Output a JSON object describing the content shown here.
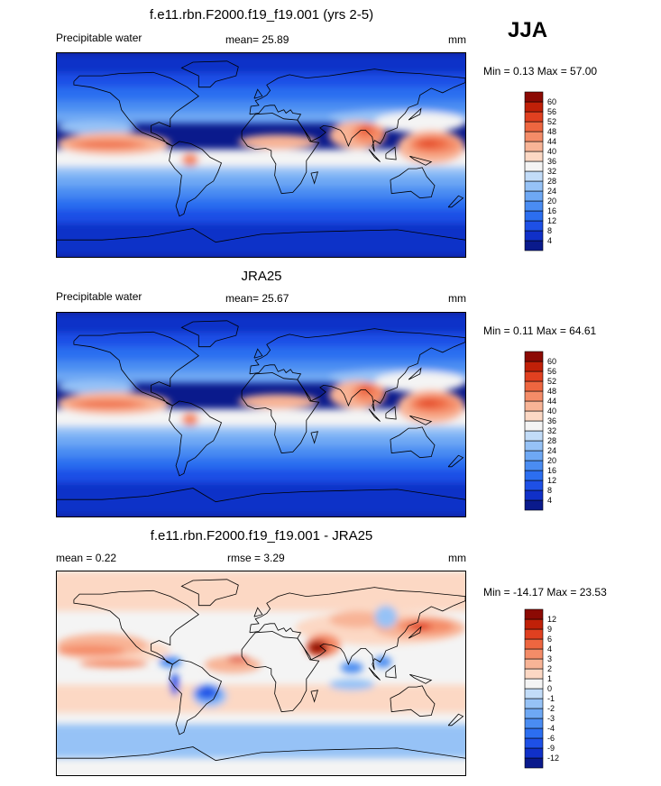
{
  "season": "JJA",
  "panels": [
    {
      "id": "model",
      "title": "f.e11.rbn.F2000.f19_f19.001 (yrs 2-5)",
      "left_label": "Precipitable water",
      "center_label": "mean=  25.89",
      "units": "mm",
      "minmax": "Min =   0.13 Max =  57.00"
    },
    {
      "id": "obs",
      "title": "JRA25",
      "left_label": "Precipitable water",
      "center_label": "mean=  25.67",
      "units": "mm",
      "minmax": "Min =   0.11 Max =  64.61"
    },
    {
      "id": "diff",
      "title": "f.e11.rbn.F2000.f19_f19.001 - JRA25",
      "left_label": "mean =   0.22",
      "center_label": "rmse =   3.29",
      "units": "mm",
      "minmax": "Min = -14.17 Max =  23.53"
    }
  ],
  "chart_data": [
    {
      "type": "heatmap",
      "title": "f.e11.rbn.F2000.f19_f19.001 (yrs 2-5)",
      "variable": "Precipitable water",
      "units": "mm",
      "mean": 25.89,
      "min": 0.13,
      "max": 57.0,
      "colorbar_levels": [
        4,
        8,
        12,
        16,
        20,
        24,
        28,
        32,
        36,
        40,
        44,
        48,
        52,
        56,
        60
      ],
      "colors": [
        "#0a1a8c",
        "#1030c8",
        "#1e50e6",
        "#2c6ef0",
        "#4a8cf2",
        "#6ea8f4",
        "#96c2f6",
        "#c2dcf8",
        "#f4f4f4",
        "#fcd8c4",
        "#f8b496",
        "#f48c68",
        "#ee6640",
        "#e04020",
        "#c02008",
        "#8c0a04"
      ]
    },
    {
      "type": "heatmap",
      "title": "JRA25",
      "variable": "Precipitable water",
      "units": "mm",
      "mean": 25.67,
      "min": 0.11,
      "max": 64.61,
      "colorbar_levels": [
        4,
        8,
        12,
        16,
        20,
        24,
        28,
        32,
        36,
        40,
        44,
        48,
        52,
        56,
        60
      ],
      "colors": [
        "#0a1a8c",
        "#1030c8",
        "#1e50e6",
        "#2c6ef0",
        "#4a8cf2",
        "#6ea8f4",
        "#96c2f6",
        "#c2dcf8",
        "#f4f4f4",
        "#fcd8c4",
        "#f8b496",
        "#f48c68",
        "#ee6640",
        "#e04020",
        "#c02008",
        "#8c0a04"
      ]
    },
    {
      "type": "heatmap",
      "title": "f.e11.rbn.F2000.f19_f19.001 - JRA25",
      "units": "mm",
      "mean": 0.22,
      "rmse": 3.29,
      "min": -14.17,
      "max": 23.53,
      "colorbar_levels": [
        -12,
        -9,
        -6,
        -4,
        -3,
        -2,
        -1,
        0,
        1,
        2,
        3,
        4,
        6,
        9,
        12
      ],
      "colors": [
        "#0a1a8c",
        "#1030c8",
        "#1e50e6",
        "#2c6ef0",
        "#4a8cf2",
        "#6ea8f4",
        "#96c2f6",
        "#c2dcf8",
        "#f4f4f4",
        "#fcd8c4",
        "#f8b496",
        "#f48c68",
        "#ee6640",
        "#e04020",
        "#c02008",
        "#8c0a04"
      ]
    }
  ]
}
